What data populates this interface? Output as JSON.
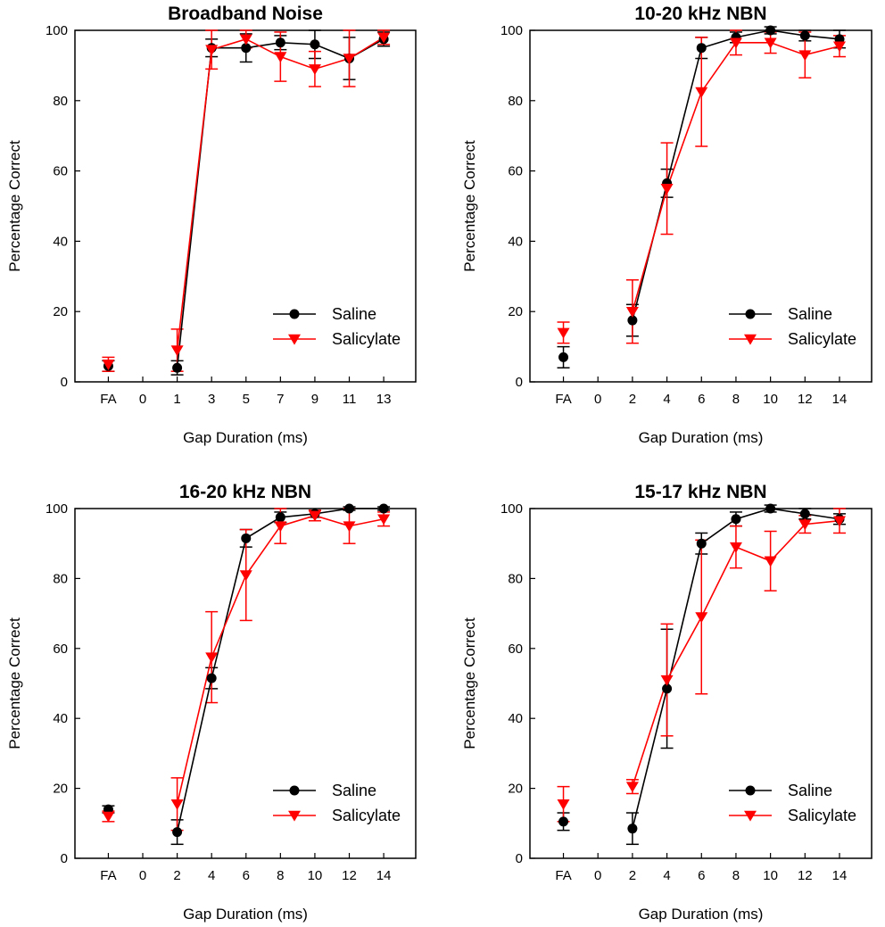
{
  "colors": {
    "saline": "#000000",
    "salicylate": "#ff0000"
  },
  "chart_data": [
    {
      "type": "line",
      "title": "Broadband Noise",
      "xlabel": "Gap Duration (ms)",
      "ylabel": "Percentage Correct",
      "ylim": [
        0,
        100
      ],
      "yticks": [
        0,
        20,
        40,
        60,
        80,
        100
      ],
      "xticks": [
        "FA",
        "0",
        "1",
        "3",
        "5",
        "7",
        "9",
        "11",
        "13"
      ],
      "legend": {
        "position": "bottom-right",
        "entries": [
          "Saline",
          "Salicylate"
        ]
      },
      "series": [
        {
          "name": "Saline",
          "color": "#000000",
          "marker": "circle",
          "fa": {
            "value": 4.5,
            "err": 1.5
          },
          "x": [
            1,
            3,
            5,
            7,
            9,
            11,
            13
          ],
          "values": [
            4,
            95,
            95,
            96.5,
            96,
            92,
            97.5
          ],
          "errors": [
            2,
            2.5,
            4,
            2,
            4,
            6,
            2
          ]
        },
        {
          "name": "Salicylate",
          "color": "#ff0000",
          "marker": "triangle",
          "fa": {
            "value": 5,
            "err": 2
          },
          "x": [
            1,
            3,
            5,
            7,
            9,
            11,
            13
          ],
          "values": [
            9,
            94.5,
            97.5,
            92.5,
            89,
            92,
            98
          ],
          "errors": [
            6,
            5.5,
            2.5,
            7,
            5,
            8,
            2
          ]
        }
      ]
    },
    {
      "type": "line",
      "title": "10-20 kHz NBN",
      "xlabel": "Gap Duration (ms)",
      "ylabel": "Percentage Correct",
      "ylim": [
        0,
        100
      ],
      "yticks": [
        0,
        20,
        40,
        60,
        80,
        100
      ],
      "xticks": [
        "FA",
        "0",
        "2",
        "4",
        "6",
        "8",
        "10",
        "12",
        "14"
      ],
      "legend": {
        "position": "bottom-right",
        "entries": [
          "Saline",
          "Salicylate"
        ]
      },
      "series": [
        {
          "name": "Saline",
          "color": "#000000",
          "marker": "circle",
          "fa": {
            "value": 7,
            "err": 3
          },
          "x": [
            2,
            4,
            6,
            8,
            10,
            12,
            14
          ],
          "values": [
            17.5,
            56.5,
            95,
            98,
            100,
            98.5,
            97.5
          ],
          "errors": [
            4.5,
            4,
            3,
            1.5,
            1,
            1.5,
            2.5
          ]
        },
        {
          "name": "Salicylate",
          "color": "#ff0000",
          "marker": "triangle",
          "fa": {
            "value": 14,
            "err": 3
          },
          "x": [
            2,
            4,
            6,
            8,
            10,
            12,
            14
          ],
          "values": [
            20,
            55,
            82.5,
            96.5,
            96.5,
            93,
            95.5
          ],
          "errors": [
            9,
            13,
            15.5,
            3.5,
            3,
            6.5,
            3
          ]
        }
      ]
    },
    {
      "type": "line",
      "title": "16-20 kHz NBN",
      "xlabel": "Gap Duration (ms)",
      "ylabel": "Percentage Correct",
      "ylim": [
        0,
        100
      ],
      "yticks": [
        0,
        20,
        40,
        60,
        80,
        100
      ],
      "xticks": [
        "FA",
        "0",
        "2",
        "4",
        "6",
        "8",
        "10",
        "12",
        "14"
      ],
      "legend": {
        "position": "bottom-right",
        "entries": [
          "Saline",
          "Salicylate"
        ]
      },
      "series": [
        {
          "name": "Saline",
          "color": "#000000",
          "marker": "circle",
          "fa": {
            "value": 14,
            "err": 1
          },
          "x": [
            2,
            4,
            6,
            8,
            10,
            12,
            14
          ],
          "values": [
            7.5,
            51.5,
            91.5,
            97.5,
            98.5,
            100,
            100
          ],
          "errors": [
            3.5,
            3,
            2.5,
            1.5,
            1,
            0.5,
            0.5
          ]
        },
        {
          "name": "Salicylate",
          "color": "#ff0000",
          "marker": "triangle",
          "fa": {
            "value": 12,
            "err": 1.5
          },
          "x": [
            2,
            4,
            6,
            8,
            10,
            12,
            14
          ],
          "values": [
            15.5,
            57.5,
            81,
            95,
            98,
            95,
            97
          ],
          "errors": [
            7.5,
            13,
            13,
            5,
            1.5,
            5,
            2
          ]
        }
      ]
    },
    {
      "type": "line",
      "title": "15-17 kHz NBN",
      "xlabel": "Gap Duration (ms)",
      "ylabel": "Percentage Correct",
      "ylim": [
        0,
        100
      ],
      "yticks": [
        0,
        20,
        40,
        60,
        80,
        100
      ],
      "xticks": [
        "FA",
        "0",
        "2",
        "4",
        "6",
        "8",
        "10",
        "12",
        "14"
      ],
      "legend": {
        "position": "bottom-right",
        "entries": [
          "Saline",
          "Salicylate"
        ]
      },
      "series": [
        {
          "name": "Saline",
          "color": "#000000",
          "marker": "circle",
          "fa": {
            "value": 10.5,
            "err": 2.5
          },
          "x": [
            2,
            4,
            6,
            8,
            10,
            12,
            14
          ],
          "values": [
            8.5,
            48.5,
            90,
            97,
            100,
            98.5,
            97
          ],
          "errors": [
            4.5,
            17,
            3,
            2,
            1,
            1.5,
            1.5
          ]
        },
        {
          "name": "Salicylate",
          "color": "#ff0000",
          "marker": "triangle",
          "fa": {
            "value": 15.5,
            "err": 5
          },
          "x": [
            2,
            4,
            6,
            8,
            10,
            12,
            14
          ],
          "values": [
            20.5,
            51,
            69,
            89,
            85,
            95.5,
            96.5
          ],
          "errors": [
            2,
            16,
            22,
            6,
            8.5,
            2.5,
            3.5
          ]
        }
      ]
    }
  ]
}
